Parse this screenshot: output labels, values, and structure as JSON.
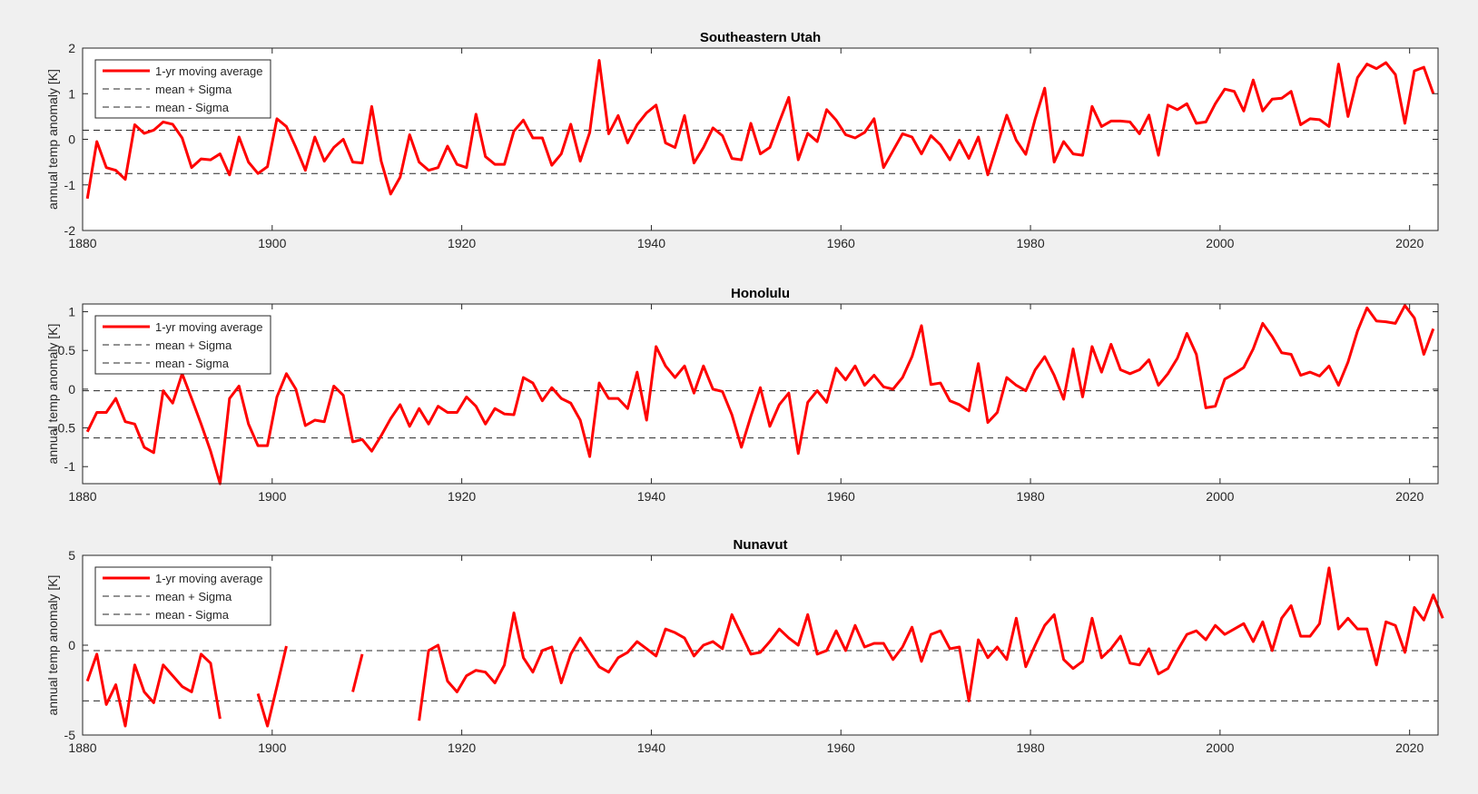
{
  "colors": {
    "background": "#f0f0f0",
    "axes_background": "#ffffff",
    "series_color": "#ff0000",
    "reference_line_color": "#262626",
    "text_color": "#262626"
  },
  "chart_data": [
    {
      "type": "line",
      "title": "Southeastern Utah",
      "xlabel": "",
      "ylabel": "annual temp anomaly [K]",
      "xlim": [
        1880,
        2023
      ],
      "ylim": [
        -2,
        2
      ],
      "xticks": [
        1880,
        1900,
        1920,
        1940,
        1960,
        1980,
        2000,
        2020
      ],
      "yticks": [
        -2,
        -1,
        0,
        1,
        2
      ],
      "grid": false,
      "legend_position": "top-left",
      "legend": [
        "1-yr moving average",
        "mean + Sigma",
        "mean - Sigma"
      ],
      "reference_lines": {
        "mean_plus_sigma": 0.2,
        "mean_minus_sigma": -0.75
      },
      "series": [
        {
          "name": "1-yr moving average",
          "x_start": 1880.5,
          "values": [
            -1.3,
            -0.05,
            -0.62,
            -0.68,
            -0.88,
            0.32,
            0.13,
            0.2,
            0.38,
            0.33,
            0.03,
            -0.62,
            -0.43,
            -0.45,
            -0.32,
            -0.78,
            0.05,
            -0.5,
            -0.75,
            -0.6,
            0.45,
            0.28,
            -0.18,
            -0.68,
            0.05,
            -0.48,
            -0.18,
            0.0,
            -0.5,
            -0.52,
            0.72,
            -0.48,
            -1.2,
            -0.83,
            0.1,
            -0.5,
            -0.68,
            -0.62,
            -0.15,
            -0.55,
            -0.62,
            0.55,
            -0.38,
            -0.55,
            -0.55,
            0.18,
            0.42,
            0.03,
            0.03,
            -0.57,
            -0.32,
            0.33,
            -0.48,
            0.15,
            1.73,
            0.12,
            0.52,
            -0.08,
            0.32,
            0.58,
            0.75,
            -0.08,
            -0.18,
            0.52,
            -0.52,
            -0.18,
            0.25,
            0.08,
            -0.42,
            -0.45,
            0.35,
            -0.32,
            -0.18,
            0.38,
            0.92,
            -0.45,
            0.13,
            -0.05,
            0.65,
            0.42,
            0.1,
            0.03,
            0.15,
            0.45,
            -0.62,
            -0.25,
            0.12,
            0.05,
            -0.32,
            0.08,
            -0.12,
            -0.45,
            -0.02,
            -0.42,
            0.05,
            -0.78,
            -0.12,
            0.53,
            -0.02,
            -0.33,
            0.45,
            1.12,
            -0.5,
            -0.05,
            -0.32,
            -0.35,
            0.72,
            0.28,
            0.4,
            0.4,
            0.38,
            0.12,
            0.53,
            -0.35,
            0.75,
            0.65,
            0.78,
            0.35,
            0.38,
            0.78,
            1.1,
            1.05,
            0.62,
            1.3,
            0.62,
            0.88,
            0.9,
            1.05,
            0.32,
            0.45,
            0.43,
            0.28,
            1.65,
            0.5,
            1.35,
            1.65,
            1.55,
            1.68,
            1.42,
            0.35,
            1.5,
            1.58,
            1.0
          ]
        }
      ]
    },
    {
      "type": "line",
      "title": "Honolulu",
      "xlabel": "",
      "ylabel": "annual temp anomaly [K]",
      "xlim": [
        1880,
        2023
      ],
      "ylim": [
        -1.22,
        1.1
      ],
      "xticks": [
        1880,
        1900,
        1920,
        1940,
        1960,
        1980,
        2000,
        2020
      ],
      "yticks": [
        -1,
        -0.5,
        0,
        0.5,
        1
      ],
      "grid": false,
      "legend_position": "top-left",
      "legend": [
        "1-yr moving average",
        "mean + Sigma",
        "mean - Sigma"
      ],
      "reference_lines": {
        "mean_plus_sigma": -0.02,
        "mean_minus_sigma": -0.63
      },
      "series": [
        {
          "name": "1-yr moving average",
          "x_start": 1880.5,
          "values": [
            -0.55,
            -0.3,
            -0.3,
            -0.12,
            -0.42,
            -0.45,
            -0.75,
            -0.82,
            -0.02,
            -0.18,
            0.2,
            -0.12,
            -0.45,
            -0.8,
            -1.22,
            -0.12,
            0.04,
            -0.45,
            -0.73,
            -0.73,
            -0.1,
            0.2,
            0.0,
            -0.47,
            -0.4,
            -0.42,
            0.04,
            -0.08,
            -0.68,
            -0.65,
            -0.8,
            -0.6,
            -0.38,
            -0.2,
            -0.48,
            -0.25,
            -0.45,
            -0.22,
            -0.3,
            -0.3,
            -0.1,
            -0.22,
            -0.45,
            -0.25,
            -0.32,
            -0.33,
            0.15,
            0.08,
            -0.15,
            0.02,
            -0.12,
            -0.18,
            -0.4,
            -0.87,
            0.08,
            -0.12,
            -0.12,
            -0.25,
            0.22,
            -0.4,
            0.55,
            0.3,
            0.15,
            0.3,
            -0.05,
            0.3,
            0.0,
            -0.03,
            -0.33,
            -0.75,
            -0.35,
            0.02,
            -0.48,
            -0.2,
            -0.05,
            -0.83,
            -0.17,
            -0.02,
            -0.17,
            0.27,
            0.12,
            0.3,
            0.05,
            0.18,
            0.03,
            0.0,
            0.15,
            0.42,
            0.82,
            0.06,
            0.08,
            -0.15,
            -0.2,
            -0.28,
            0.33,
            -0.43,
            -0.3,
            0.15,
            0.05,
            -0.02,
            0.25,
            0.42,
            0.18,
            -0.13,
            0.52,
            -0.1,
            0.55,
            0.22,
            0.58,
            0.25,
            0.2,
            0.25,
            0.38,
            0.05,
            0.2,
            0.4,
            0.72,
            0.45,
            -0.24,
            -0.22,
            0.13,
            0.2,
            0.28,
            0.52,
            0.85,
            0.68,
            0.47,
            0.45,
            0.18,
            0.22,
            0.17,
            0.3,
            0.05,
            0.35,
            0.75,
            1.05,
            0.88,
            0.87,
            0.85,
            1.08,
            0.92,
            0.45,
            0.78
          ]
        }
      ]
    },
    {
      "type": "line",
      "title": "Nunavut",
      "xlabel": "",
      "ylabel": "annual temp anomaly [K]",
      "xlim": [
        1880,
        2023
      ],
      "ylim": [
        -5,
        5
      ],
      "xticks": [
        1880,
        1900,
        1920,
        1940,
        1960,
        1980,
        2000,
        2020
      ],
      "yticks": [
        -5,
        0,
        5
      ],
      "grid": false,
      "legend_position": "top-left",
      "legend": [
        "1-yr moving average",
        "mean + Sigma",
        "mean - Sigma"
      ],
      "reference_lines": {
        "mean_plus_sigma": -0.3,
        "mean_minus_sigma": -3.1
      },
      "series": [
        {
          "name": "1-yr moving average",
          "x_start": 1880.5,
          "values": [
            -2.0,
            -0.5,
            -3.3,
            -2.2,
            -4.5,
            -1.1,
            -2.6,
            -3.2,
            -1.1,
            -1.7,
            -2.3,
            -2.6,
            -0.5,
            -1.0,
            -4.1,
            null,
            null,
            null,
            -2.7,
            -4.5,
            -2.3,
            -0.05,
            null,
            null,
            null,
            null,
            null,
            null,
            -2.6,
            -0.5,
            null,
            null,
            null,
            null,
            null,
            -4.2,
            -0.3,
            0.0,
            -2.0,
            -2.6,
            -1.7,
            -1.4,
            -1.5,
            -2.1,
            -1.1,
            1.8,
            -0.7,
            -1.5,
            -0.3,
            -0.1,
            -2.1,
            -0.5,
            0.4,
            -0.4,
            -1.2,
            -1.5,
            -0.7,
            -0.4,
            0.2,
            -0.2,
            -0.6,
            0.9,
            0.7,
            0.4,
            -0.6,
            0.0,
            0.2,
            -0.2,
            1.7,
            0.6,
            -0.5,
            -0.4,
            0.2,
            0.9,
            0.4,
            0.0,
            1.7,
            -0.5,
            -0.3,
            0.8,
            -0.3,
            1.1,
            -0.1,
            0.1,
            0.1,
            -0.8,
            -0.1,
            1.0,
            -0.9,
            0.6,
            0.8,
            -0.2,
            -0.1,
            -3.1,
            0.3,
            -0.7,
            -0.1,
            -0.8,
            1.5,
            -1.2,
            0.0,
            1.1,
            1.7,
            -0.8,
            -1.3,
            -0.9,
            1.5,
            -0.7,
            -0.2,
            0.5,
            -1.0,
            -1.1,
            -0.2,
            -1.6,
            -1.3,
            -0.3,
            0.6,
            0.8,
            0.3,
            1.1,
            0.6,
            0.9,
            1.2,
            0.2,
            1.3,
            -0.3,
            1.5,
            2.2,
            0.5,
            0.5,
            1.2,
            4.3,
            0.9,
            1.5,
            0.9,
            0.9,
            -1.1,
            1.3,
            1.1,
            -0.4,
            2.1,
            1.4,
            2.8,
            1.5
          ]
        }
      ]
    }
  ]
}
